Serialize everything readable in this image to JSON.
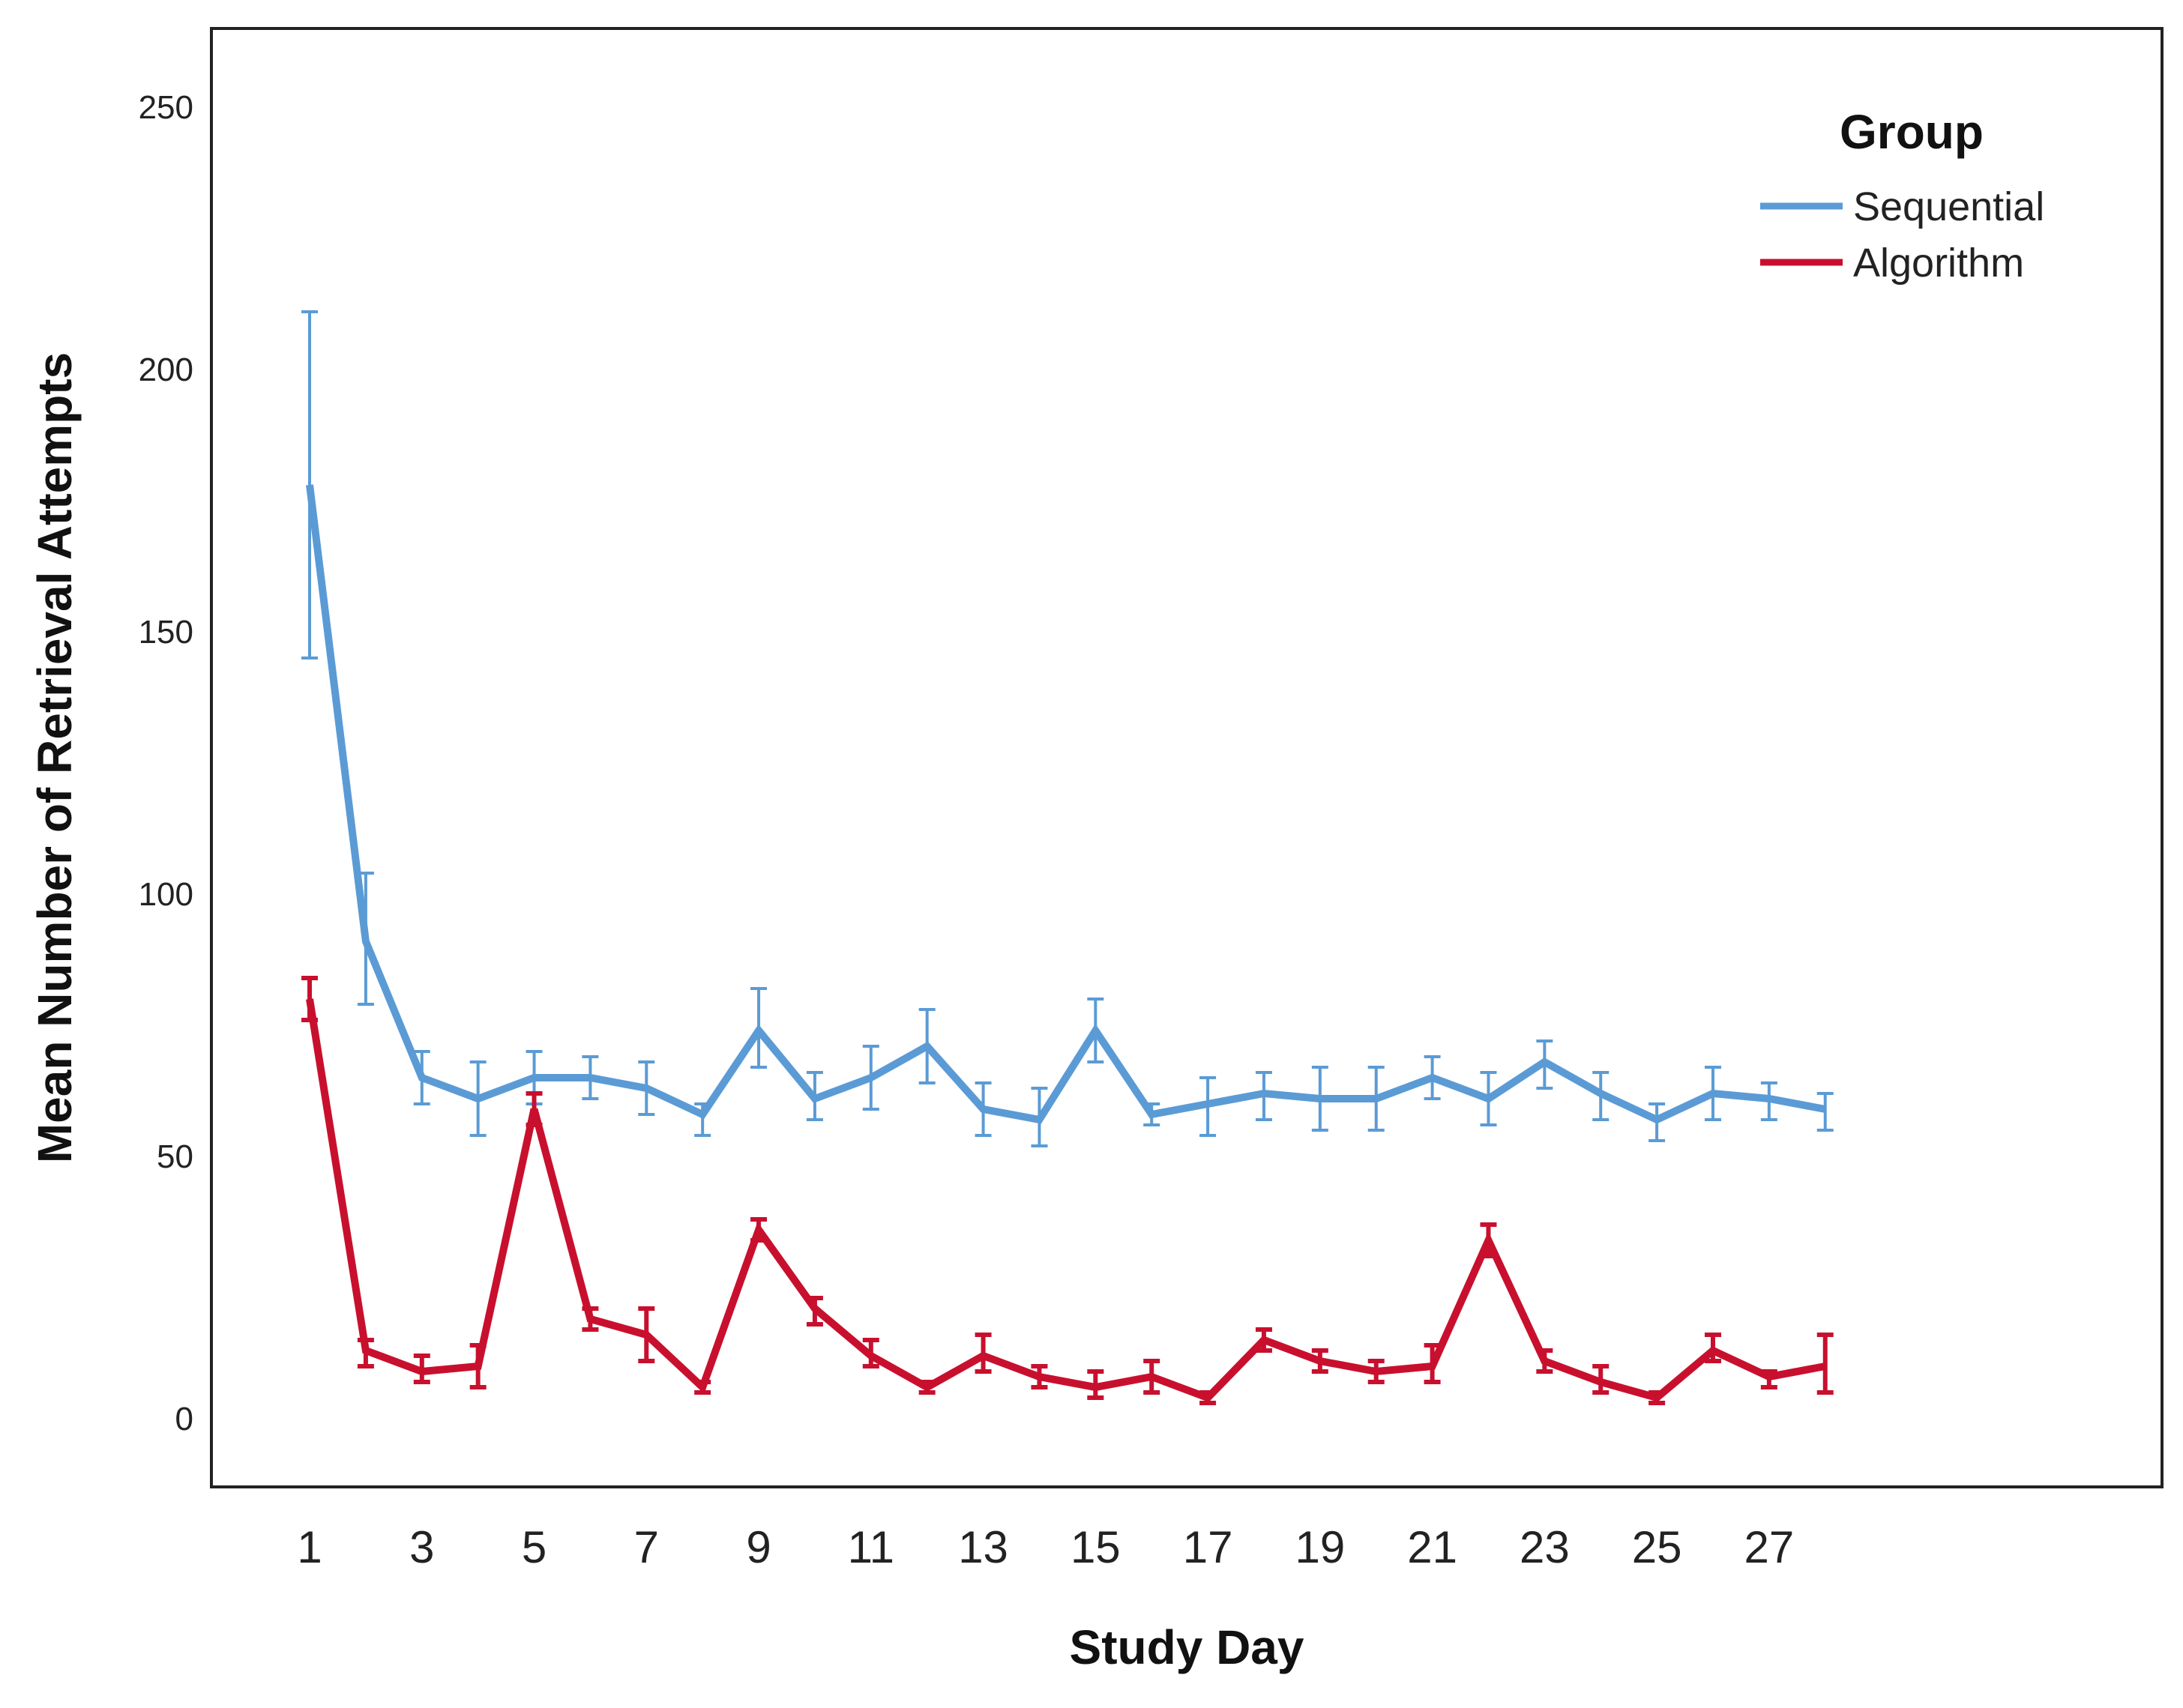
{
  "chart_data": {
    "type": "line",
    "title": "",
    "xlabel": "Study Day",
    "ylabel": "Mean Number of Retrieval Attempts",
    "x": [
      1,
      2,
      3,
      4,
      5,
      6,
      7,
      8,
      9,
      10,
      11,
      12,
      13,
      14,
      15,
      16,
      17,
      18,
      19,
      20,
      21,
      22,
      23,
      24,
      25,
      26,
      27,
      28
    ],
    "x_ticks": [
      1,
      3,
      5,
      7,
      9,
      11,
      13,
      15,
      17,
      19,
      21,
      23,
      25,
      27
    ],
    "xlim": [
      -0.75,
      34
    ],
    "ylim": [
      -13,
      265
    ],
    "y_ticks": [
      0,
      50,
      100,
      150,
      200,
      250
    ],
    "grid": false,
    "legend": {
      "title": "Group",
      "position": "top-right"
    },
    "series": [
      {
        "name": "Sequential",
        "color": "#5b9bd5",
        "values": [
          178,
          91,
          65,
          61,
          65,
          65,
          63,
          58,
          74,
          61,
          65,
          71,
          59,
          57,
          74,
          58,
          60,
          62,
          61,
          61,
          65,
          61,
          68,
          62,
          57,
          62,
          61,
          59
        ],
        "error_low": [
          145,
          79,
          60,
          54,
          60,
          61,
          58,
          54,
          67,
          57,
          59,
          64,
          54,
          52,
          68,
          56,
          54,
          57,
          55,
          55,
          61,
          56,
          63,
          57,
          53,
          57,
          57,
          55
        ],
        "error_high": [
          211,
          104,
          70,
          68,
          70,
          69,
          68,
          60,
          82,
          66,
          71,
          78,
          64,
          63,
          80,
          60,
          65,
          66,
          67,
          67,
          69,
          66,
          72,
          66,
          60,
          67,
          64,
          62
        ]
      },
      {
        "name": "Algorithm",
        "color": "#c8102e",
        "values": [
          80,
          13,
          9,
          10,
          59,
          19,
          16,
          6,
          36,
          21,
          12,
          6,
          12,
          8,
          6,
          8,
          4,
          15,
          11,
          9,
          10,
          34,
          11,
          7,
          4,
          13,
          8,
          10
        ],
        "error_low": [
          76,
          10,
          7,
          6,
          56,
          17,
          11,
          5,
          34,
          18,
          10,
          5,
          9,
          6,
          4,
          5,
          3,
          13,
          9,
          7,
          7,
          31,
          9,
          5,
          3,
          11,
          6,
          5
        ],
        "error_high": [
          84,
          15,
          12,
          14,
          62,
          21,
          21,
          7,
          38,
          23,
          15,
          7,
          16,
          10,
          9,
          11,
          5,
          17,
          13,
          11,
          14,
          37,
          13,
          10,
          5,
          16,
          9,
          16
        ]
      }
    ]
  }
}
